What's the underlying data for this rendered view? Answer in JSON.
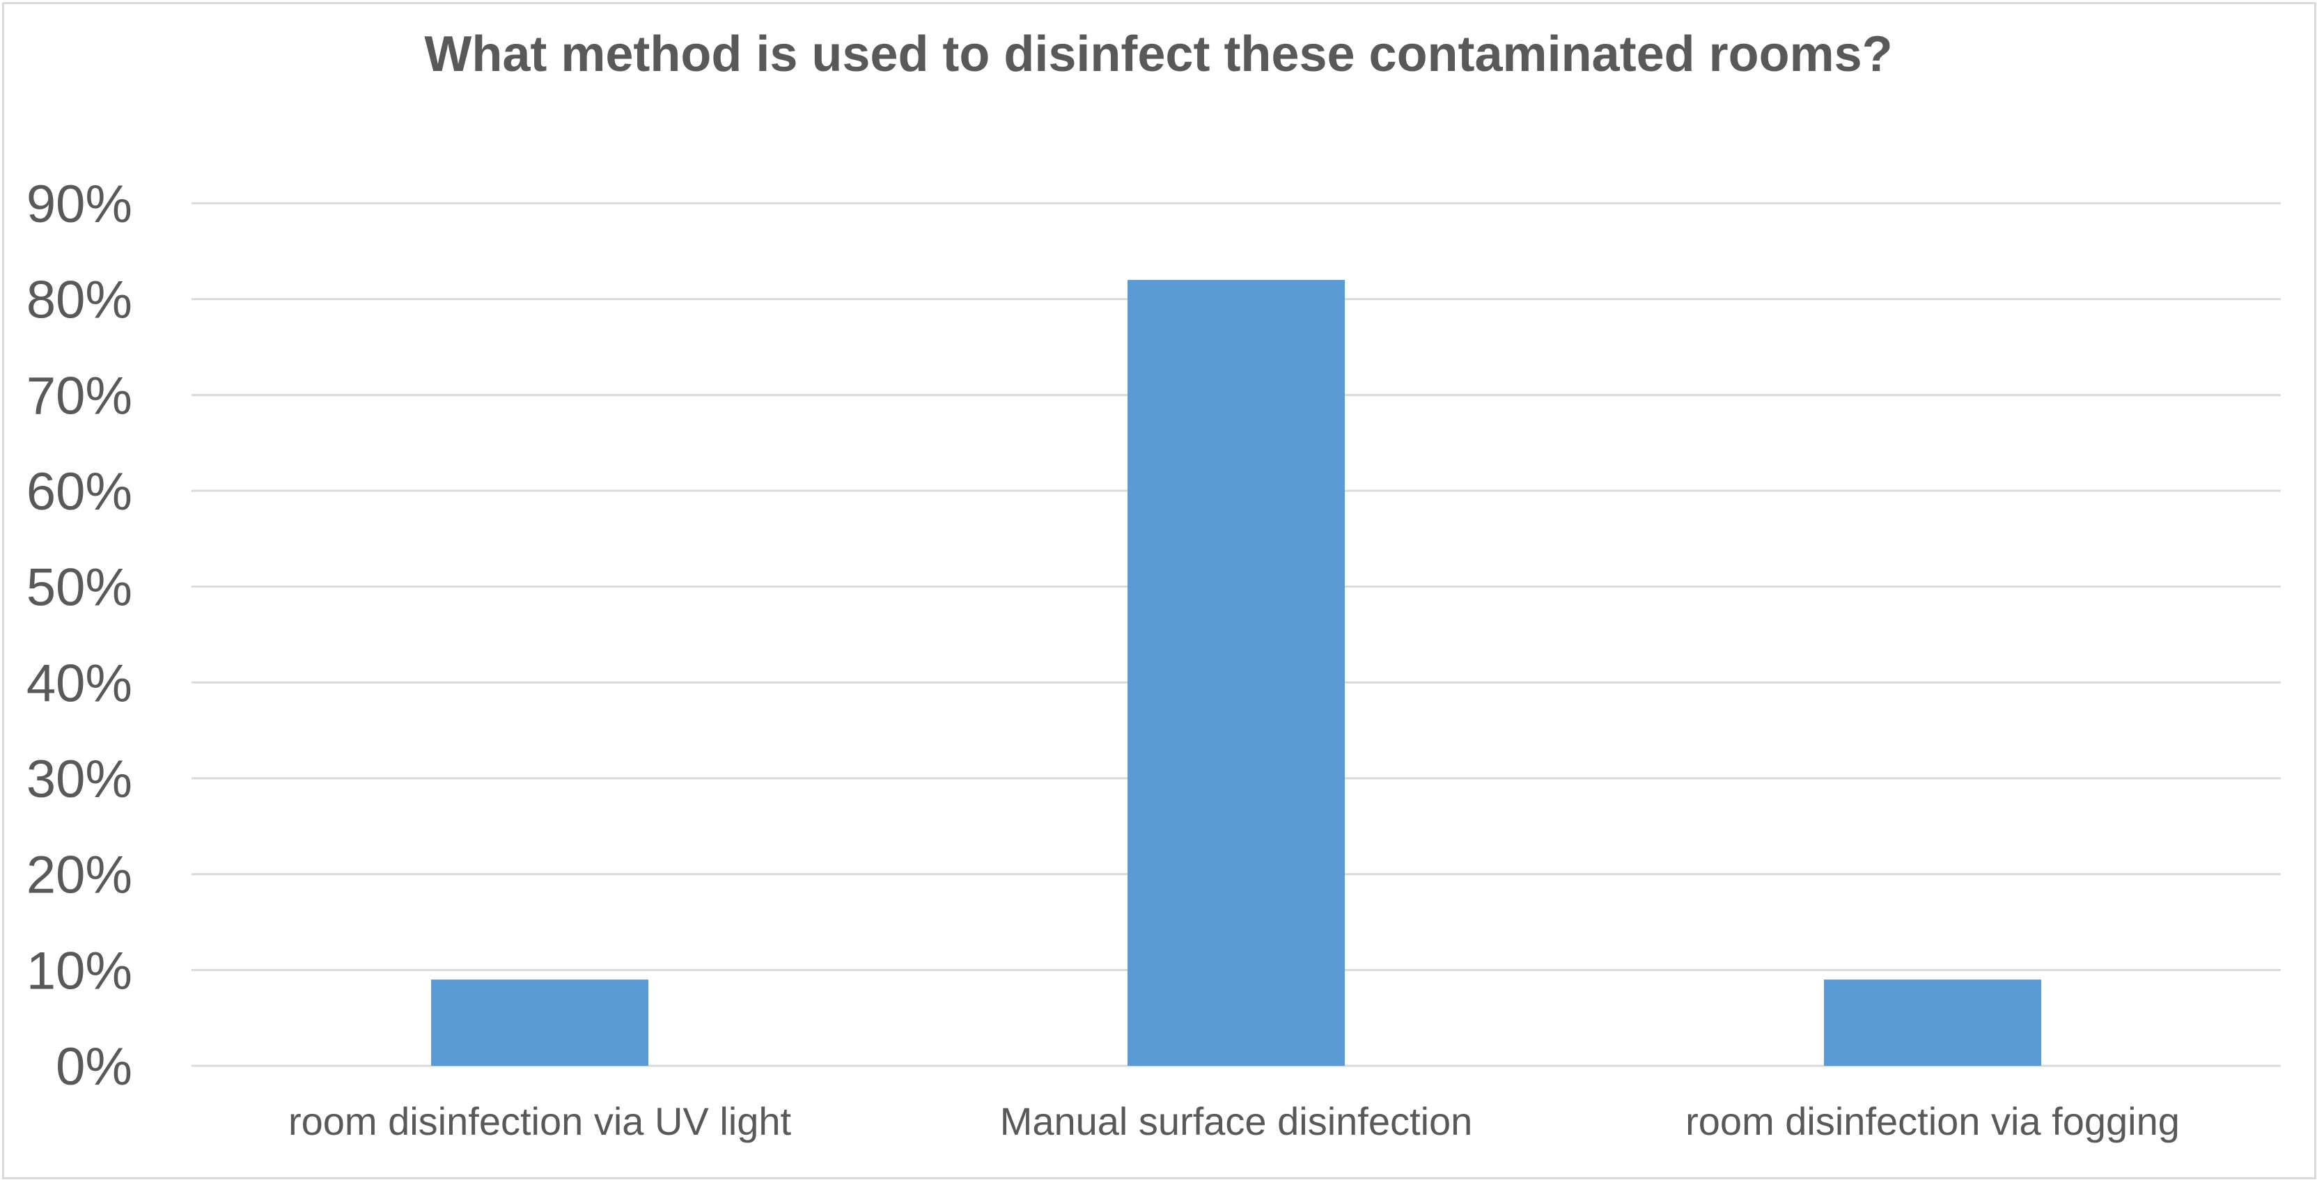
{
  "chart_data": {
    "type": "bar",
    "title": "What method is used to disinfect these contaminated rooms?",
    "categories": [
      "room disinfection via UV light",
      "Manual surface disinfection",
      "room disinfection via fogging"
    ],
    "values": [
      9,
      82,
      9
    ],
    "ylim": [
      0,
      90
    ],
    "y_ticks": [
      0,
      10,
      20,
      30,
      40,
      50,
      60,
      70,
      80,
      90
    ],
    "y_tick_labels": [
      "0%",
      "10%",
      "20%",
      "30%",
      "40%",
      "50%",
      "60%",
      "70%",
      "80%",
      "90%"
    ],
    "xlabel": "",
    "ylabel": "",
    "grid": true,
    "legend": "none",
    "colors": {
      "bar": "#5b9bd5",
      "grid": "#d9d9d9",
      "text": "#595959"
    }
  }
}
